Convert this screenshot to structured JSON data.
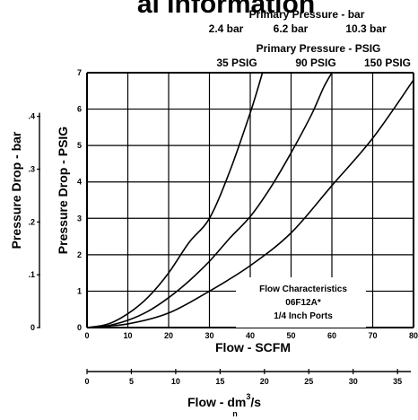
{
  "page_heading": "al Information",
  "chart_data": {
    "type": "line",
    "header": {
      "bar_title": "Primary Pressure - bar",
      "bar_values": [
        "2.4 bar",
        "6.2 bar",
        "10.3 bar"
      ],
      "psig_title": "Primary Pressure - PSIG",
      "psig_values": [
        "35 PSIG",
        "90 PSIG",
        "150 PSIG"
      ]
    },
    "xlabel": "Flow - SCFM",
    "ylabel": "Pressure Drop - PSIG",
    "xlim": [
      0,
      80
    ],
    "ylim": [
      0,
      7
    ],
    "x_ticks": [
      "0",
      "10",
      "20",
      "30",
      "40",
      "50",
      "60",
      "70",
      "80"
    ],
    "y_ticks": [
      "0",
      "1",
      "2",
      "3",
      "4",
      "5",
      "6",
      "7"
    ],
    "grid": true,
    "secondary_y": {
      "label": "Pressure Drop - bar",
      "ticks": [
        {
          "label": "0",
          "value": 0
        },
        {
          "label": ".1",
          "value": 1.45
        },
        {
          "label": ".2",
          "value": 2.9
        },
        {
          "label": ".3",
          "value": 4.35
        },
        {
          "label": ".4",
          "value": 5.8
        }
      ]
    },
    "secondary_x": {
      "label_main": "Flow - dm",
      "label_sup": "3",
      "label_end": "/s",
      "label_sub": "n",
      "ticks": [
        "0",
        "5",
        "10",
        "15",
        "20",
        "25",
        "30",
        "35"
      ]
    },
    "annotation": [
      "Flow Characteristics",
      "06F12A*",
      "1/4 Inch Ports"
    ],
    "series": [
      {
        "name": "35 PSIG",
        "points": [
          [
            0,
            0
          ],
          [
            5,
            0.09
          ],
          [
            10,
            0.38
          ],
          [
            15,
            0.84
          ],
          [
            20,
            1.5
          ],
          [
            25,
            2.34
          ],
          [
            30,
            3.0
          ],
          [
            35,
            4.3
          ],
          [
            40,
            5.9
          ],
          [
            43,
            7.0
          ]
        ]
      },
      {
        "name": "90 PSIG",
        "points": [
          [
            0,
            0
          ],
          [
            5,
            0.05
          ],
          [
            10,
            0.2
          ],
          [
            15,
            0.45
          ],
          [
            20,
            0.82
          ],
          [
            25,
            1.28
          ],
          [
            30,
            1.82
          ],
          [
            35,
            2.46
          ],
          [
            40,
            3.05
          ],
          [
            45,
            3.85
          ],
          [
            50,
            4.8
          ],
          [
            55,
            5.85
          ],
          [
            58,
            6.6
          ],
          [
            60,
            7.0
          ]
        ]
      },
      {
        "name": "150 PSIG",
        "points": [
          [
            0,
            0
          ],
          [
            10,
            0.1
          ],
          [
            20,
            0.4
          ],
          [
            30,
            1.0
          ],
          [
            40,
            1.7
          ],
          [
            50,
            2.6
          ],
          [
            60,
            3.9
          ],
          [
            70,
            5.2
          ],
          [
            80,
            6.8
          ]
        ]
      }
    ]
  }
}
